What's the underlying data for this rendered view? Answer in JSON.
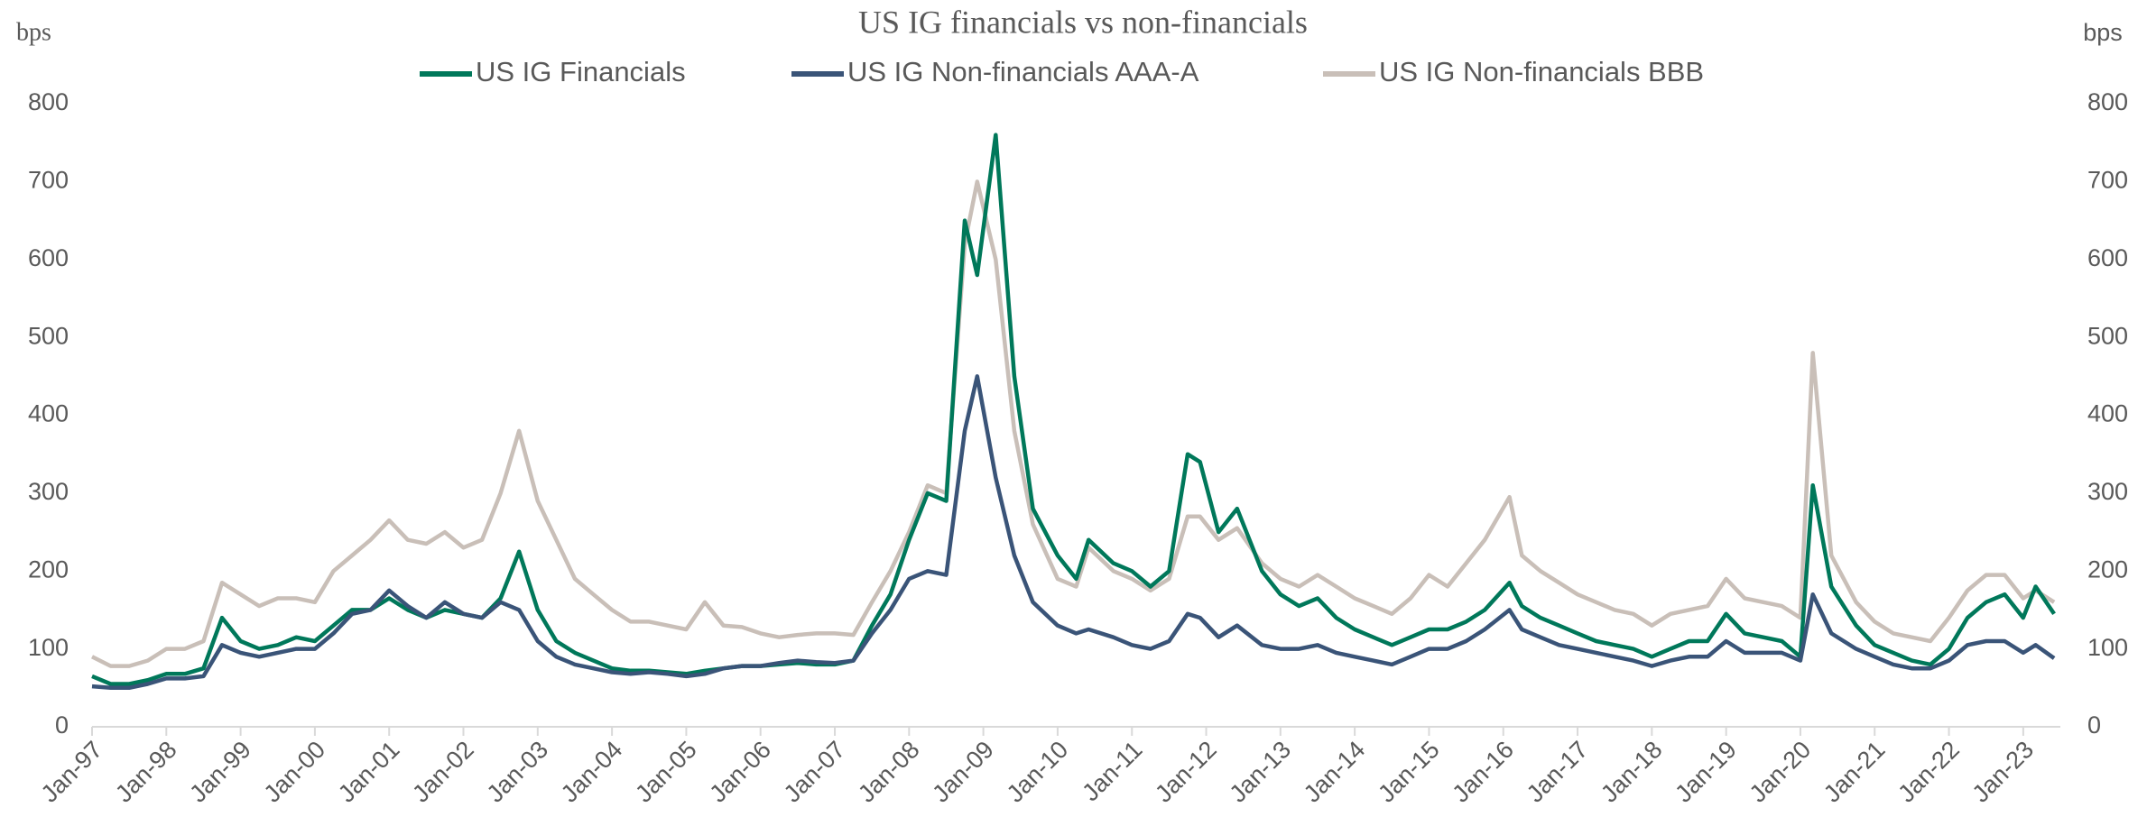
{
  "chart_data": {
    "type": "line",
    "title": "US IG financials vs non-financials",
    "y_label": "bps",
    "y2_label": "bps",
    "x": [
      "1997-01",
      "1997-04",
      "1997-07",
      "1997-10",
      "1998-01",
      "1998-04",
      "1998-07",
      "1998-10",
      "1999-01",
      "1999-04",
      "1999-07",
      "1999-10",
      "2000-01",
      "2000-04",
      "2000-07",
      "2000-10",
      "2001-01",
      "2001-04",
      "2001-07",
      "2001-10",
      "2002-01",
      "2002-04",
      "2002-07",
      "2002-10",
      "2003-01",
      "2003-04",
      "2003-07",
      "2003-10",
      "2004-01",
      "2004-04",
      "2004-07",
      "2004-10",
      "2005-01",
      "2005-04",
      "2005-07",
      "2005-10",
      "2006-01",
      "2006-04",
      "2006-07",
      "2006-10",
      "2007-01",
      "2007-04",
      "2007-07",
      "2007-10",
      "2008-01",
      "2008-04",
      "2008-07",
      "2008-10",
      "2008-12",
      "2009-03",
      "2009-06",
      "2009-09",
      "2010-01",
      "2010-04",
      "2010-06",
      "2010-10",
      "2011-01",
      "2011-04",
      "2011-07",
      "2011-10",
      "2011-12",
      "2012-03",
      "2012-06",
      "2012-10",
      "2013-01",
      "2013-04",
      "2013-07",
      "2013-10",
      "2014-01",
      "2014-04",
      "2014-07",
      "2014-10",
      "2015-01",
      "2015-04",
      "2015-07",
      "2015-10",
      "2016-02",
      "2016-04",
      "2016-07",
      "2016-10",
      "2017-01",
      "2017-04",
      "2017-07",
      "2017-10",
      "2018-01",
      "2018-04",
      "2018-07",
      "2018-10",
      "2019-01",
      "2019-04",
      "2019-07",
      "2019-10",
      "2020-01",
      "2020-03",
      "2020-06",
      "2020-10",
      "2021-01",
      "2021-04",
      "2021-07",
      "2021-10",
      "2022-01",
      "2022-04",
      "2022-07",
      "2022-10",
      "2023-01",
      "2023-03",
      "2023-06"
    ],
    "series": [
      {
        "name": "US IG Financials",
        "color": "#00785a",
        "values": [
          65,
          55,
          55,
          60,
          68,
          68,
          75,
          140,
          110,
          100,
          105,
          115,
          110,
          130,
          150,
          150,
          165,
          150,
          140,
          150,
          145,
          140,
          165,
          225,
          150,
          110,
          95,
          85,
          75,
          72,
          72,
          70,
          68,
          72,
          75,
          78,
          78,
          80,
          82,
          80,
          80,
          85,
          130,
          170,
          240,
          300,
          290,
          650,
          580,
          760,
          450,
          280,
          220,
          190,
          240,
          210,
          200,
          180,
          200,
          350,
          340,
          250,
          280,
          200,
          170,
          155,
          165,
          140,
          125,
          115,
          105,
          115,
          125,
          125,
          135,
          150,
          185,
          155,
          140,
          130,
          120,
          110,
          105,
          100,
          90,
          100,
          110,
          110,
          145,
          120,
          115,
          110,
          90,
          310,
          180,
          130,
          105,
          95,
          85,
          80,
          100,
          140,
          160,
          170,
          140,
          180,
          145
        ]
      },
      {
        "name": "US IG Non-financials AAA-A",
        "color": "#3a5478",
        "values": [
          52,
          50,
          50,
          55,
          62,
          62,
          65,
          105,
          95,
          90,
          95,
          100,
          100,
          120,
          145,
          150,
          175,
          155,
          140,
          160,
          145,
          140,
          160,
          150,
          110,
          90,
          80,
          75,
          70,
          68,
          70,
          68,
          65,
          68,
          75,
          78,
          78,
          82,
          85,
          83,
          82,
          85,
          120,
          150,
          190,
          200,
          195,
          380,
          450,
          320,
          220,
          160,
          130,
          120,
          125,
          115,
          105,
          100,
          110,
          145,
          140,
          115,
          130,
          105,
          100,
          100,
          105,
          95,
          90,
          85,
          80,
          90,
          100,
          100,
          110,
          125,
          150,
          125,
          115,
          105,
          100,
          95,
          90,
          85,
          78,
          85,
          90,
          90,
          110,
          95,
          95,
          95,
          85,
          170,
          120,
          100,
          90,
          80,
          75,
          75,
          85,
          105,
          110,
          110,
          95,
          105,
          88
        ]
      },
      {
        "name": "US IG Non-financials BBB",
        "color": "#c9bfb8",
        "values": [
          90,
          78,
          78,
          85,
          100,
          100,
          110,
          185,
          170,
          155,
          165,
          165,
          160,
          200,
          220,
          240,
          265,
          240,
          235,
          250,
          230,
          240,
          300,
          380,
          290,
          240,
          190,
          170,
          150,
          135,
          135,
          130,
          125,
          160,
          130,
          128,
          120,
          115,
          118,
          120,
          120,
          118,
          160,
          200,
          250,
          310,
          300,
          620,
          700,
          600,
          380,
          260,
          190,
          180,
          230,
          200,
          190,
          175,
          190,
          270,
          270,
          240,
          255,
          210,
          190,
          180,
          195,
          180,
          165,
          155,
          145,
          165,
          195,
          180,
          210,
          240,
          295,
          220,
          200,
          185,
          170,
          160,
          150,
          145,
          130,
          145,
          150,
          155,
          190,
          165,
          160,
          155,
          140,
          480,
          220,
          160,
          135,
          120,
          115,
          110,
          140,
          175,
          195,
          195,
          165,
          175,
          160
        ]
      }
    ],
    "xlim": [
      "1997-01",
      "2023-07"
    ],
    "xticks": [
      {
        "value": "1997-01",
        "label": "Jan-97"
      },
      {
        "value": "1998-01",
        "label": "Jan-98"
      },
      {
        "value": "1999-01",
        "label": "Jan-99"
      },
      {
        "value": "2000-01",
        "label": "Jan-00"
      },
      {
        "value": "2001-01",
        "label": "Jan-01"
      },
      {
        "value": "2002-01",
        "label": "Jan-02"
      },
      {
        "value": "2003-01",
        "label": "Jan-03"
      },
      {
        "value": "2004-01",
        "label": "Jan-04"
      },
      {
        "value": "2005-01",
        "label": "Jan-05"
      },
      {
        "value": "2006-01",
        "label": "Jan-06"
      },
      {
        "value": "2007-01",
        "label": "Jan-07"
      },
      {
        "value": "2008-01",
        "label": "Jan-08"
      },
      {
        "value": "2009-01",
        "label": "Jan-09"
      },
      {
        "value": "2010-01",
        "label": "Jan-10"
      },
      {
        "value": "2011-01",
        "label": "Jan-11"
      },
      {
        "value": "2012-01",
        "label": "Jan-12"
      },
      {
        "value": "2013-01",
        "label": "Jan-13"
      },
      {
        "value": "2014-01",
        "label": "Jan-14"
      },
      {
        "value": "2015-01",
        "label": "Jan-15"
      },
      {
        "value": "2016-01",
        "label": "Jan-16"
      },
      {
        "value": "2017-01",
        "label": "Jan-17"
      },
      {
        "value": "2018-01",
        "label": "Jan-18"
      },
      {
        "value": "2019-01",
        "label": "Jan-19"
      },
      {
        "value": "2020-01",
        "label": "Jan-20"
      },
      {
        "value": "2021-01",
        "label": "Jan-21"
      },
      {
        "value": "2022-01",
        "label": "Jan-22"
      },
      {
        "value": "2023-01",
        "label": "Jan-23"
      }
    ],
    "ylim": [
      0,
      800
    ],
    "yticks": [
      0,
      100,
      200,
      300,
      400,
      500,
      600,
      700,
      800
    ],
    "y2lim": [
      0,
      800
    ],
    "y2ticks": [
      0,
      100,
      200,
      300,
      400,
      500,
      600,
      700,
      800
    ],
    "grid": false,
    "legend": "top"
  }
}
